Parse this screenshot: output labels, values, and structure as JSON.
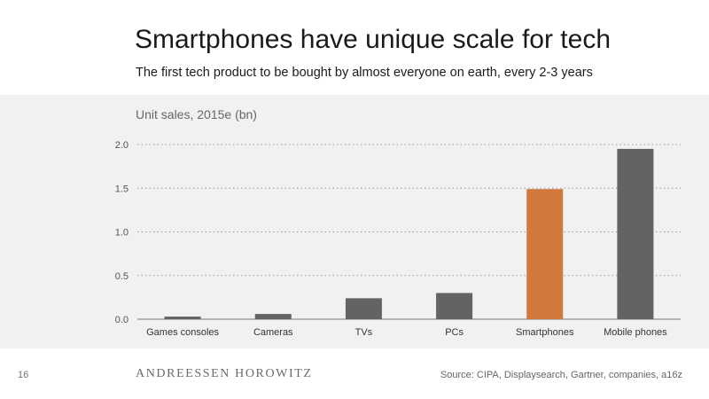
{
  "slide": {
    "title": "Smartphones have unique scale for tech",
    "subtitle": "The first tech product to be bought by almost everyone on earth, every 2-3 years",
    "page_number": "16",
    "brand": "ANDREESSEN HOROWITZ",
    "source": "Source: CIPA, Displaysearch, Gartner, companies, a16z"
  },
  "chart_data": {
    "type": "bar",
    "title": "Unit sales, 2015e (bn)",
    "xlabel": "",
    "ylabel": "",
    "categories": [
      "Games consoles",
      "Cameras",
      "TVs",
      "PCs",
      "Smartphones",
      "Mobile phones"
    ],
    "values": [
      0.03,
      0.06,
      0.24,
      0.3,
      1.49,
      1.95
    ],
    "ylim": [
      0,
      2.0
    ],
    "yticks": [
      "0.0",
      "0.5",
      "1.0",
      "1.5",
      "2.0"
    ],
    "grid": true,
    "colors": {
      "default": "#636363",
      "highlight": "#d1793c",
      "highlight_category": "Smartphones"
    }
  }
}
